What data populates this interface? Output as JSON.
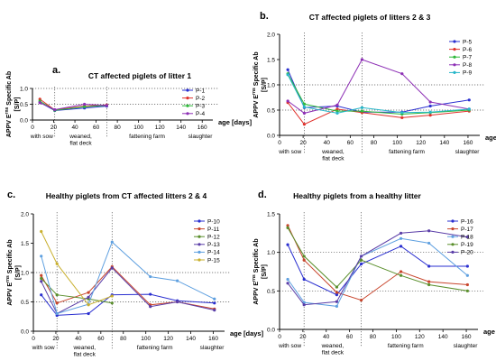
{
  "chart_data": [
    {
      "panel_label": "a.",
      "title": "CT affected piglets of litter 1",
      "type": "line",
      "ylabel_line1": "APPV E",
      "ylabel_sup": "rns",
      "ylabel_line2": " Specific Ab",
      "ylabel_line3": "[S/P]",
      "xlabel": "age [days]",
      "xlim": [
        0,
        170
      ],
      "ylim": [
        0,
        1.0
      ],
      "xticks": [
        0,
        20,
        40,
        60,
        80,
        100,
        120,
        140,
        160
      ],
      "yticks": [
        0.0,
        0.5,
        1.0
      ],
      "ytick_labels": [
        "0.0",
        "0.5",
        "1.0"
      ],
      "ref_lines_y": [
        0.5,
        1.0
      ],
      "vlines_x": [
        21,
        70
      ],
      "phases": [
        "with sow",
        "weaned,\nflat deck",
        "fattening farm",
        "slaughter"
      ],
      "legend_position": "top-right",
      "series": [
        {
          "name": "P-1",
          "color": "#2a2fd0",
          "x": [
            7,
            21,
            49,
            70
          ],
          "y": [
            0.56,
            0.3,
            0.38,
            0.44
          ]
        },
        {
          "name": "P-2",
          "color": "#e0312c",
          "x": [
            7,
            21,
            49,
            70
          ],
          "y": [
            0.66,
            0.32,
            0.44,
            0.48
          ]
        },
        {
          "name": "P-3",
          "color": "#2fb83a",
          "x": [
            7,
            21,
            49,
            70
          ],
          "y": [
            0.6,
            0.31,
            0.42,
            0.46
          ]
        },
        {
          "name": "P-4",
          "color": "#8d2fb5",
          "x": [
            7,
            21,
            49,
            70
          ],
          "y": [
            0.55,
            0.33,
            0.5,
            0.46
          ]
        }
      ]
    },
    {
      "panel_label": "b.",
      "title": "CT affected piglets of litters 2 & 3",
      "type": "line",
      "ylabel_line1": "APPV E",
      "ylabel_sup": "rns",
      "ylabel_line2": " Specific Ab",
      "ylabel_line3": "[S/P]",
      "xlabel": "age [days]",
      "xlim": [
        0,
        170
      ],
      "ylim": [
        0,
        2.0
      ],
      "xticks": [
        0,
        20,
        40,
        60,
        80,
        100,
        120,
        140,
        160
      ],
      "yticks": [
        0.0,
        0.5,
        1.0,
        1.5,
        2.0
      ],
      "ytick_labels": [
        "0.0",
        "0.5",
        "1.0",
        "1.5",
        "2.0"
      ],
      "ref_lines_y": [
        0.5,
        1.0
      ],
      "vlines_x": [
        21,
        70
      ],
      "phases": [
        "with sow",
        "weaned,\nflat deck",
        "fattening farm",
        "slaughter"
      ],
      "legend_position": "top-right",
      "series": [
        {
          "name": "P-5",
          "color": "#2a2fd0",
          "x": [
            7,
            21,
            49,
            70,
            104,
            128,
            161
          ],
          "y": [
            1.3,
            0.55,
            0.58,
            0.46,
            0.46,
            0.58,
            0.7
          ]
        },
        {
          "name": "P-6",
          "color": "#e0312c",
          "x": [
            7,
            21,
            49,
            70,
            104,
            128,
            161
          ],
          "y": [
            0.65,
            0.22,
            0.52,
            0.45,
            0.35,
            0.4,
            0.48
          ]
        },
        {
          "name": "P-7",
          "color": "#2fb83a",
          "x": [
            7,
            21,
            49,
            70,
            104,
            128,
            161
          ],
          "y": [
            1.22,
            0.62,
            0.48,
            0.48,
            0.42,
            0.45,
            0.5
          ]
        },
        {
          "name": "P-8",
          "color": "#8d2fb5",
          "x": [
            7,
            21,
            49,
            70,
            104,
            128,
            161
          ],
          "y": [
            0.68,
            0.44,
            0.6,
            1.5,
            1.22,
            0.66,
            0.52
          ]
        },
        {
          "name": "P-9",
          "color": "#27b6c9",
          "x": [
            7,
            21,
            49,
            70,
            104,
            128,
            161
          ],
          "y": [
            1.2,
            0.56,
            0.44,
            0.55,
            0.45,
            0.46,
            0.52
          ]
        }
      ]
    },
    {
      "panel_label": "c.",
      "title": "Healthy piglets from CT affected litters 2 & 4",
      "type": "line",
      "ylabel_line1": "APPV E",
      "ylabel_sup": "rns",
      "ylabel_line2": " Specific Ab",
      "ylabel_line3": "[S/P]",
      "xlabel": "age [days]",
      "xlim": [
        0,
        170
      ],
      "ylim": [
        0,
        2.0
      ],
      "xticks": [
        0,
        20,
        40,
        60,
        80,
        100,
        120,
        140,
        160
      ],
      "yticks": [
        0.0,
        0.5,
        1.0,
        1.5,
        2.0
      ],
      "ytick_labels": [
        "0.0",
        "0.5",
        "1.0",
        "1.5",
        "2.0"
      ],
      "ref_lines_y": [
        0.5,
        1.0
      ],
      "vlines_x": [
        21,
        70
      ],
      "phases": [
        "with sow",
        "weaned,\nflat deck",
        "fattening farm",
        "slaughter"
      ],
      "legend_position": "top-right",
      "series": [
        {
          "name": "P-10",
          "color": "#2a2fd0",
          "x": [
            7,
            21,
            49,
            70,
            104,
            128,
            161
          ],
          "y": [
            0.62,
            0.27,
            0.3,
            0.62,
            0.63,
            0.52,
            0.48
          ]
        },
        {
          "name": "P-11",
          "color": "#c8452c",
          "x": [
            7,
            21,
            49,
            70,
            104,
            128,
            161
          ],
          "y": [
            0.95,
            0.48,
            0.66,
            1.1,
            0.45,
            0.5,
            0.38
          ]
        },
        {
          "name": "P-12",
          "color": "#5a8f2c",
          "x": [
            7,
            21,
            49,
            70
          ],
          "y": [
            0.9,
            0.62,
            0.55,
            0.48
          ]
        },
        {
          "name": "P-13",
          "color": "#5b3ea8",
          "x": [
            7,
            21,
            49,
            70,
            104,
            128,
            161
          ],
          "y": [
            0.85,
            0.3,
            0.58,
            1.08,
            0.42,
            0.5,
            0.36
          ]
        },
        {
          "name": "P-14",
          "color": "#5fa0e0",
          "x": [
            7,
            21,
            49,
            70,
            104,
            128,
            161
          ],
          "y": [
            1.28,
            0.3,
            0.46,
            1.52,
            0.93,
            0.86,
            0.55
          ]
        },
        {
          "name": "P-15",
          "color": "#c9b02f",
          "x": [
            7,
            21,
            49,
            70
          ],
          "y": [
            1.7,
            1.15,
            0.45,
            0.6
          ]
        }
      ]
    },
    {
      "panel_label": "d.",
      "title": "Healthy piglets from a healthy litter",
      "type": "line",
      "ylabel_line1": "APPV E",
      "ylabel_sup": "rns",
      "ylabel_line2": " Specific Ab",
      "ylabel_line3": "[S/P]",
      "xlabel": "age [days]",
      "xlim": [
        0,
        170
      ],
      "ylim": [
        0,
        1.5
      ],
      "xticks": [
        0,
        20,
        40,
        60,
        80,
        100,
        120,
        140,
        160
      ],
      "yticks": [
        0.0,
        0.5,
        1.0,
        1.5
      ],
      "ytick_labels": [
        "0.0",
        "0.5",
        "1.0",
        "1.5"
      ],
      "ref_lines_y": [
        0.5,
        1.0
      ],
      "vlines_x": [
        21,
        70
      ],
      "phases": [
        "with sow",
        "weaned,\nflat deck",
        "fattening farm",
        "slaughter"
      ],
      "legend_position": "top-right",
      "series": [
        {
          "name": "P-16",
          "color": "#2a2fd0",
          "x": [
            7,
            21,
            49,
            70,
            104,
            128,
            161
          ],
          "y": [
            1.1,
            0.65,
            0.45,
            0.85,
            1.08,
            0.82,
            0.82
          ]
        },
        {
          "name": "P-17",
          "color": "#c8452c",
          "x": [
            7,
            21,
            49,
            70,
            104,
            128,
            161
          ],
          "y": [
            1.35,
            0.9,
            0.48,
            0.38,
            0.75,
            0.62,
            0.58
          ]
        },
        {
          "name": "P-18",
          "color": "#5fa0e0",
          "x": [
            7,
            21,
            49,
            70,
            104,
            128,
            161
          ],
          "y": [
            0.65,
            0.35,
            0.3,
            0.95,
            1.18,
            1.12,
            0.7
          ]
        },
        {
          "name": "P-19",
          "color": "#5a8f2c",
          "x": [
            7,
            21,
            49,
            70,
            104,
            128,
            161
          ],
          "y": [
            1.32,
            0.95,
            0.55,
            0.9,
            0.7,
            0.58,
            0.5
          ]
        },
        {
          "name": "P-20",
          "color": "#5b3ea8",
          "x": [
            7,
            21,
            49,
            70,
            104,
            128,
            161
          ],
          "y": [
            0.6,
            0.32,
            0.36,
            0.95,
            1.25,
            1.28,
            1.2
          ]
        }
      ]
    }
  ]
}
